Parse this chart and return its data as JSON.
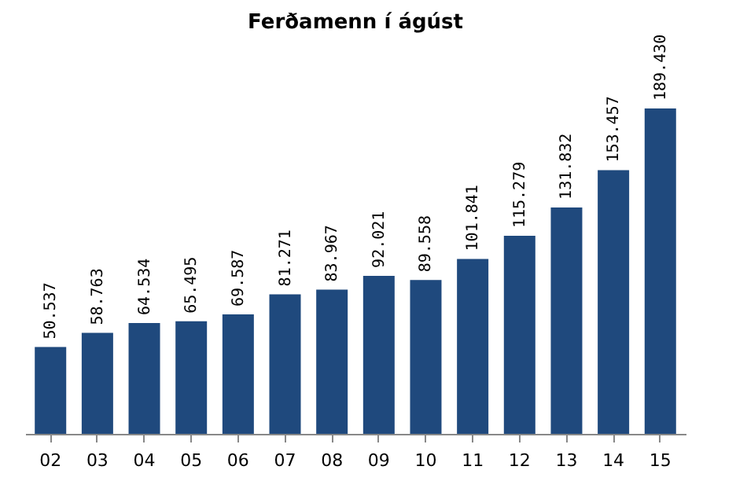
{
  "chart_data": {
    "type": "bar",
    "title": "Ferðamenn í ágúst",
    "categories": [
      "02",
      "03",
      "04",
      "05",
      "06",
      "07",
      "08",
      "09",
      "10",
      "11",
      "12",
      "13",
      "14",
      "15"
    ],
    "series": [
      {
        "color": "#1f497d",
        "values": [
          50537,
          58763,
          64534,
          65495,
          69587,
          81271,
          83967,
          92021,
          89558,
          101841,
          115279,
          131832,
          153457,
          189430
        ],
        "value_labels": [
          "50.537",
          "58.763",
          "64.534",
          "65.495",
          "69.587",
          "81.271",
          "83.967",
          "92.021",
          "89.558",
          "101.841",
          "115.279",
          "131.832",
          "153.457",
          "189.430"
        ]
      }
    ]
  }
}
